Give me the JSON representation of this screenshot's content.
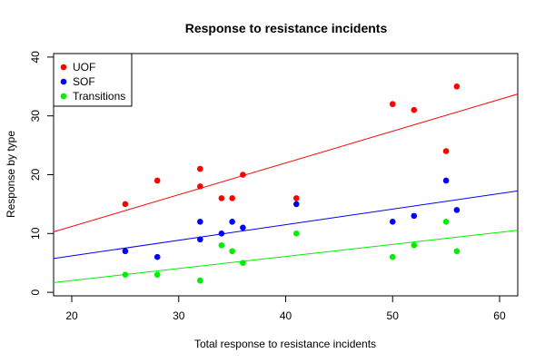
{
  "chart_data": {
    "type": "scatter",
    "title": "Response to resistance incidents",
    "xlabel": "Total response to resistance incidents",
    "ylabel": "Response by type",
    "xlim": [
      18.3,
      61.7
    ],
    "ylim": [
      -0.6,
      40.6
    ],
    "x_ticks": [
      20,
      30,
      40,
      50,
      60
    ],
    "y_ticks": [
      0,
      10,
      20,
      30,
      40
    ],
    "grid": false,
    "legend_position": "top-left",
    "x": [
      25,
      28,
      32,
      32,
      34,
      35,
      36,
      41,
      50,
      52,
      55,
      56
    ],
    "series": [
      {
        "name": "UOF",
        "color": "#ff0000",
        "values": [
          15,
          19,
          18,
          21,
          16,
          16,
          20,
          16,
          32,
          31,
          24,
          35
        ],
        "fit": {
          "intercept": 0.4,
          "slope": 0.54
        }
      },
      {
        "name": "SOF",
        "color": "#0000ff",
        "values": [
          7,
          6,
          12,
          9,
          10,
          12,
          11,
          15,
          12,
          13,
          19,
          14
        ],
        "fit": {
          "intercept": 0.9,
          "slope": 0.265
        }
      },
      {
        "name": "Transitions",
        "color": "#00ee00",
        "values": [
          3,
          3,
          2,
          2,
          8,
          7,
          5,
          10,
          6,
          8,
          12,
          7
        ],
        "fit": {
          "intercept": -2.1,
          "slope": 0.205
        }
      }
    ]
  }
}
